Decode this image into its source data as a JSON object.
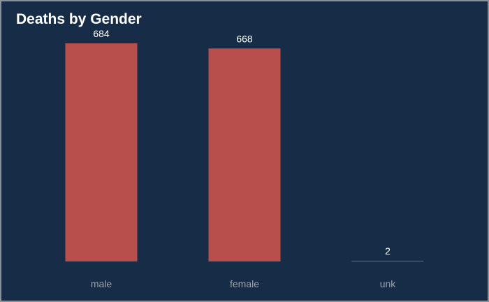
{
  "chart_data": {
    "type": "bar",
    "title": "Deaths by Gender",
    "categories": [
      "male",
      "female",
      "unk"
    ],
    "values": [
      684,
      668,
      2
    ],
    "xlabel": "",
    "ylabel": "",
    "grid": false,
    "colors": {
      "bar": "#b84f4c",
      "background": "#172d47",
      "value_label": "#ffffff",
      "category_label": "#9aa3ad"
    }
  }
}
